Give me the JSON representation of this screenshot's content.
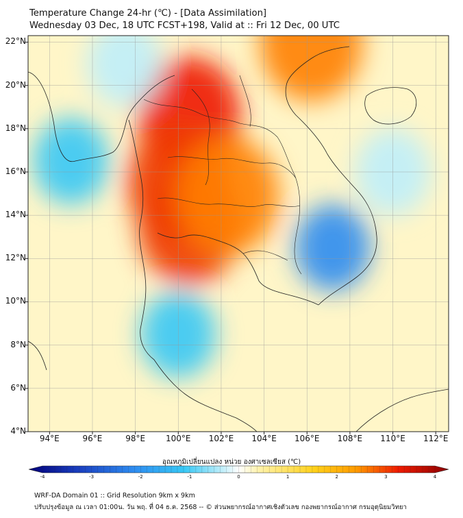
{
  "header": {
    "title_line1": "Temperature Change 24-hr (℃) - [Data Assimilation]",
    "title_line2": "Wednesday 03 Dec, 18 UTC FCST+198, Valid at :: Fri 12 Dec, 00 UTC"
  },
  "map": {
    "lat_labels": [
      "22°N",
      "20°N",
      "18°N",
      "16°N",
      "14°N",
      "12°N",
      "10°N",
      "8°N",
      "6°N",
      "4°N"
    ],
    "lon_labels": [
      "94°E",
      "96°E",
      "98°E",
      "100°E",
      "102°E",
      "104°E",
      "106°E",
      "108°E",
      "110°E",
      "112°E"
    ],
    "lat_range": [
      4,
      22.3
    ],
    "lon_range": [
      93,
      112.6
    ],
    "anomaly_regions": [
      {
        "name": "warm-core-north-thailand-laos",
        "lat": 18.6,
        "lon": 100.5,
        "value": 3.3
      },
      {
        "name": "warm-west-thailand",
        "lat": 15.5,
        "lon": 100.0,
        "value": 3.0
      },
      {
        "name": "warm-central-thailand",
        "lat": 13.5,
        "lon": 100.5,
        "value": 2.9
      },
      {
        "name": "warm-northeast-thailand",
        "lat": 14.9,
        "lon": 102.3,
        "value": 2.6
      },
      {
        "name": "warm-gulf-tonkin",
        "lat": 22.0,
        "lon": 106.2,
        "value": 2.6
      },
      {
        "name": "cool-central-vietnam",
        "lat": 12.5,
        "lon": 107.2,
        "value": -2.0
      },
      {
        "name": "cool-gulf-thailand",
        "lat": 8.5,
        "lon": 100.0,
        "value": -1.2
      },
      {
        "name": "cool-andaman-sea",
        "lat": 16.5,
        "lon": 95.0,
        "value": -1.2
      },
      {
        "name": "cool-south-china-sea",
        "lat": 16.0,
        "lon": 110.0,
        "value": -0.8
      },
      {
        "name": "cool-north-sea",
        "lat": 21.0,
        "lon": 97.5,
        "value": -0.8
      }
    ],
    "colors": {
      "deep_blue": "#1a3fbf",
      "blue": "#2e8cf0",
      "cyan": "#38c8f5",
      "pale_cyan": "#bfeefa",
      "neutral": "#ffffff",
      "pale_yellow": "#fff2a8",
      "yellow": "#ffd11a",
      "orange": "#ff7f00",
      "red": "#ee1b00",
      "dark_red": "#8b0000"
    }
  },
  "colorbar": {
    "title": "อุณหภูมิเปลี่ยนแปลง หน่วย องศาเซลเซียส (℃)",
    "tick_labels": [
      "-4",
      "-3",
      "-2",
      "-1",
      "0",
      "1",
      "2",
      "3",
      "4"
    ],
    "range": [
      -4,
      4
    ]
  },
  "footer": {
    "line1": "WRF-DA Domain 01 :: Grid Resolution 9km x 9km",
    "line2": "ปรับปรุงข้อมูล ณ เวลา 01:00น. วัน พฤ. ที่ 04 ธ.ค. 2568 -- © ส่วนพยากรณ์อากาศเชิงตัวเลข กองพยากรณ์อากาศ กรมอุตุนิยมวิทยา"
  }
}
